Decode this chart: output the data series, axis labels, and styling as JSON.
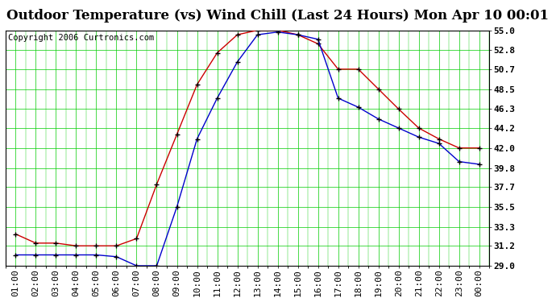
{
  "title": "Outdoor Temperature (vs) Wind Chill (Last 24 Hours) Mon Apr 10 00:01",
  "copyright": "Copyright 2006 Curtronics.com",
  "x_labels": [
    "01:00",
    "02:00",
    "03:00",
    "04:00",
    "05:00",
    "06:00",
    "07:00",
    "08:00",
    "09:00",
    "10:00",
    "11:00",
    "12:00",
    "13:00",
    "14:00",
    "15:00",
    "16:00",
    "17:00",
    "18:00",
    "19:00",
    "20:00",
    "21:00",
    "22:00",
    "23:00",
    "00:00"
  ],
  "temp_red": [
    32.5,
    31.5,
    31.5,
    31.2,
    31.2,
    31.2,
    32.0,
    38.0,
    43.5,
    49.0,
    52.5,
    54.5,
    55.0,
    55.0,
    54.5,
    53.5,
    50.7,
    50.7,
    48.5,
    46.3,
    44.2,
    43.0,
    42.0,
    42.0
  ],
  "temp_blue": [
    30.2,
    30.2,
    30.2,
    30.2,
    30.2,
    30.0,
    29.0,
    29.0,
    35.5,
    43.0,
    47.5,
    51.5,
    54.5,
    54.8,
    54.5,
    54.0,
    47.5,
    46.5,
    45.2,
    44.2,
    43.2,
    42.5,
    40.5,
    40.2
  ],
  "ylim": [
    29.0,
    55.0
  ],
  "yticks": [
    29.0,
    31.2,
    33.3,
    35.5,
    37.7,
    39.8,
    42.0,
    44.2,
    46.3,
    48.5,
    50.7,
    52.8,
    55.0
  ],
  "bg_color": "#ffffff",
  "plot_bg": "#ffffff",
  "grid_color": "#00cc00",
  "red_color": "#cc0000",
  "blue_color": "#0000cc",
  "title_fontsize": 12,
  "copyright_fontsize": 7.5,
  "tick_fontsize": 8,
  "ytick_fontsize": 8
}
